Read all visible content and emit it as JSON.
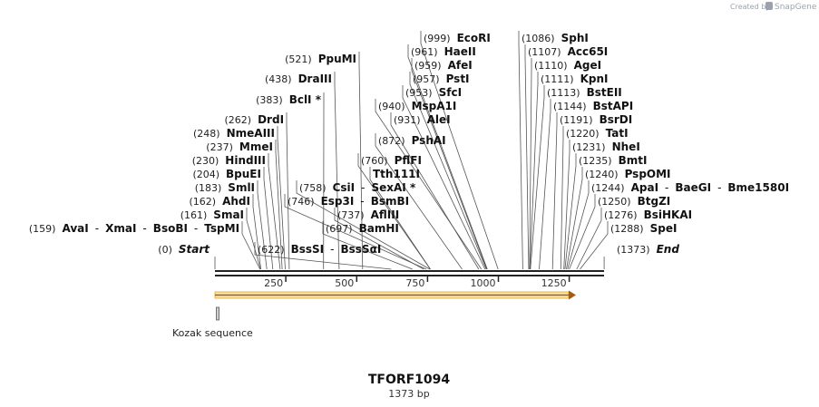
{
  "credit": {
    "created_by": "Created by",
    "brand": "SnapGene"
  },
  "map": {
    "length": 1373,
    "title": "TFORF1094",
    "subtitle": "1373 bp",
    "axis_ticks": [
      "250",
      "500",
      "750",
      "1000",
      "1250"
    ],
    "feature_label": "Kozak sequence",
    "sites": [
      {
        "pos": 0,
        "pos_label": "(0)",
        "enzymes": [
          {
            "name": "Start",
            "kind": "terminus"
          }
        ]
      },
      {
        "pos": 159,
        "pos_label": "(159)",
        "enzymes": [
          {
            "name": "AvaI"
          },
          {
            "name": "XmaI"
          },
          {
            "name": "BsoBI"
          },
          {
            "name": "TspMI"
          }
        ]
      },
      {
        "pos": 161,
        "pos_label": "(161)",
        "enzymes": [
          {
            "name": "SmaI"
          }
        ]
      },
      {
        "pos": 162,
        "pos_label": "(162)",
        "enzymes": [
          {
            "name": "AhdI"
          }
        ]
      },
      {
        "pos": 183,
        "pos_label": "(183)",
        "enzymes": [
          {
            "name": "SmlI"
          }
        ]
      },
      {
        "pos": 204,
        "pos_label": "(204)",
        "enzymes": [
          {
            "name": "BpuEI"
          }
        ]
      },
      {
        "pos": 230,
        "pos_label": "(230)",
        "enzymes": [
          {
            "name": "HindIII"
          }
        ]
      },
      {
        "pos": 237,
        "pos_label": "(237)",
        "enzymes": [
          {
            "name": "MmeI"
          }
        ]
      },
      {
        "pos": 248,
        "pos_label": "(248)",
        "enzymes": [
          {
            "name": "NmeAIII"
          }
        ]
      },
      {
        "pos": 262,
        "pos_label": "(262)",
        "enzymes": [
          {
            "name": "DrdI"
          }
        ]
      },
      {
        "pos": 383,
        "pos_label": "(383)",
        "enzymes": [
          {
            "name": "BclI *"
          }
        ]
      },
      {
        "pos": 438,
        "pos_label": "(438)",
        "enzymes": [
          {
            "name": "DraIII"
          }
        ]
      },
      {
        "pos": 521,
        "pos_label": "(521)",
        "enzymes": [
          {
            "name": "PpuMI"
          }
        ]
      },
      {
        "pos": 622,
        "pos_label": "(622)",
        "enzymes": [
          {
            "name": "BssSI"
          },
          {
            "name": "BssSαI"
          }
        ]
      },
      {
        "pos": 697,
        "pos_label": "(697)",
        "enzymes": [
          {
            "name": "BamHI"
          }
        ]
      },
      {
        "pos": 737,
        "pos_label": "(737)",
        "enzymes": [
          {
            "name": "AflIII"
          }
        ]
      },
      {
        "pos": 746,
        "pos_label": "(746)",
        "enzymes": [
          {
            "name": "Esp3I"
          },
          {
            "name": "BsmBI"
          }
        ]
      },
      {
        "pos": 758,
        "pos_label": "(758)",
        "enzymes": [
          {
            "name": "CsiI"
          },
          {
            "name": "SexAI *"
          }
        ]
      },
      {
        "pos": 760,
        "pos_label": "(760)",
        "enzymes": [
          {
            "name": "PflFI"
          }
        ]
      },
      {
        "pos": 760,
        "pos_label": "",
        "enzymes": [
          {
            "name": "Tth111I"
          }
        ]
      },
      {
        "pos": 872,
        "pos_label": "(872)",
        "enzymes": [
          {
            "name": "PshAI"
          }
        ]
      },
      {
        "pos": 931,
        "pos_label": "(931)",
        "enzymes": [
          {
            "name": "AleI"
          }
        ]
      },
      {
        "pos": 940,
        "pos_label": "(940)",
        "enzymes": [
          {
            "name": "MspA1I"
          }
        ]
      },
      {
        "pos": 953,
        "pos_label": "(953)",
        "enzymes": [
          {
            "name": "SfcI"
          }
        ]
      },
      {
        "pos": 957,
        "pos_label": "(957)",
        "enzymes": [
          {
            "name": "PstI"
          }
        ]
      },
      {
        "pos": 959,
        "pos_label": "(959)",
        "enzymes": [
          {
            "name": "AfeI"
          }
        ]
      },
      {
        "pos": 961,
        "pos_label": "(961)",
        "enzymes": [
          {
            "name": "HaeII"
          }
        ]
      },
      {
        "pos": 999,
        "pos_label": "(999)",
        "enzymes": [
          {
            "name": "EcoRI"
          }
        ]
      },
      {
        "pos": 1086,
        "pos_label": "(1086)",
        "enzymes": [
          {
            "name": "SphI"
          }
        ]
      },
      {
        "pos": 1107,
        "pos_label": "(1107)",
        "enzymes": [
          {
            "name": "Acc65I"
          }
        ]
      },
      {
        "pos": 1110,
        "pos_label": "(1110)",
        "enzymes": [
          {
            "name": "AgeI"
          }
        ]
      },
      {
        "pos": 1111,
        "pos_label": "(1111)",
        "enzymes": [
          {
            "name": "KpnI"
          }
        ]
      },
      {
        "pos": 1113,
        "pos_label": "(1113)",
        "enzymes": [
          {
            "name": "BstEII"
          }
        ]
      },
      {
        "pos": 1144,
        "pos_label": "(1144)",
        "enzymes": [
          {
            "name": "BstAPI"
          }
        ]
      },
      {
        "pos": 1191,
        "pos_label": "(1191)",
        "enzymes": [
          {
            "name": "BsrDI"
          }
        ]
      },
      {
        "pos": 1220,
        "pos_label": "(1220)",
        "enzymes": [
          {
            "name": "TatI"
          }
        ]
      },
      {
        "pos": 1231,
        "pos_label": "(1231)",
        "enzymes": [
          {
            "name": "NheI"
          }
        ]
      },
      {
        "pos": 1235,
        "pos_label": "(1235)",
        "enzymes": [
          {
            "name": "BmtI"
          }
        ]
      },
      {
        "pos": 1240,
        "pos_label": "(1240)",
        "enzymes": [
          {
            "name": "PspOMI"
          }
        ]
      },
      {
        "pos": 1244,
        "pos_label": "(1244)",
        "enzymes": [
          {
            "name": "ApaI"
          },
          {
            "name": "BaeGI"
          },
          {
            "name": "Bme1580I"
          }
        ]
      },
      {
        "pos": 1250,
        "pos_label": "(1250)",
        "enzymes": [
          {
            "name": "BtgZI"
          }
        ]
      },
      {
        "pos": 1276,
        "pos_label": "(1276)",
        "enzymes": [
          {
            "name": "BsiHKAI"
          }
        ]
      },
      {
        "pos": 1288,
        "pos_label": "(1288)",
        "enzymes": [
          {
            "name": "SpeI"
          }
        ]
      },
      {
        "pos": 1373,
        "pos_label": "(1373)",
        "enzymes": [
          {
            "name": "End",
            "kind": "terminus"
          }
        ]
      }
    ]
  }
}
